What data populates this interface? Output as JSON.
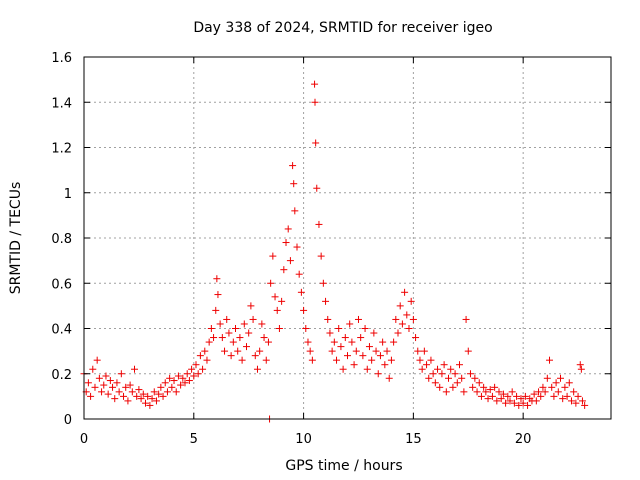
{
  "chart_data": {
    "type": "scatter",
    "title": "Day 338 of 2024, SRMTID for receiver igeo",
    "xlabel": "GPS time / hours",
    "ylabel": "SRMTID / TECUs",
    "xlim": [
      0,
      24
    ],
    "ylim": [
      0,
      1.6
    ],
    "x_ticks": [
      "0",
      "5",
      "10",
      "15",
      "20"
    ],
    "y_ticks": [
      "0",
      "0.2",
      "0.4",
      "0.6",
      "0.8",
      "1",
      "1.2",
      "1.4",
      "1.6"
    ],
    "grid": true,
    "marker": "+",
    "color": "#ee0000",
    "series": [
      {
        "name": "igeo",
        "points": [
          [
            0.0,
            0.2
          ],
          [
            0.1,
            0.12
          ],
          [
            0.2,
            0.16
          ],
          [
            0.3,
            0.1
          ],
          [
            0.4,
            0.22
          ],
          [
            0.5,
            0.14
          ],
          [
            0.6,
            0.26
          ],
          [
            0.7,
            0.18
          ],
          [
            0.8,
            0.12
          ],
          [
            0.9,
            0.15
          ],
          [
            1.0,
            0.19
          ],
          [
            1.1,
            0.11
          ],
          [
            1.2,
            0.17
          ],
          [
            1.3,
            0.14
          ],
          [
            1.4,
            0.09
          ],
          [
            1.5,
            0.16
          ],
          [
            1.6,
            0.12
          ],
          [
            1.7,
            0.2
          ],
          [
            1.8,
            0.1
          ],
          [
            1.9,
            0.14
          ],
          [
            2.0,
            0.08
          ],
          [
            2.1,
            0.15
          ],
          [
            2.2,
            0.12
          ],
          [
            2.3,
            0.22
          ],
          [
            2.4,
            0.1
          ],
          [
            2.5,
            0.13
          ],
          [
            2.6,
            0.09
          ],
          [
            2.7,
            0.11
          ],
          [
            2.8,
            0.07
          ],
          [
            2.9,
            0.1
          ],
          [
            3.0,
            0.06
          ],
          [
            3.1,
            0.09
          ],
          [
            3.2,
            0.12
          ],
          [
            3.3,
            0.08
          ],
          [
            3.4,
            0.11
          ],
          [
            3.5,
            0.14
          ],
          [
            3.6,
            0.1
          ],
          [
            3.7,
            0.16
          ],
          [
            3.8,
            0.12
          ],
          [
            3.9,
            0.18
          ],
          [
            4.0,
            0.14
          ],
          [
            4.1,
            0.17
          ],
          [
            4.2,
            0.12
          ],
          [
            4.3,
            0.19
          ],
          [
            4.4,
            0.15
          ],
          [
            4.5,
            0.18
          ],
          [
            4.6,
            0.16
          ],
          [
            4.7,
            0.2
          ],
          [
            4.8,
            0.17
          ],
          [
            4.9,
            0.22
          ],
          [
            5.0,
            0.19
          ],
          [
            5.1,
            0.24
          ],
          [
            5.2,
            0.2
          ],
          [
            5.3,
            0.28
          ],
          [
            5.4,
            0.22
          ],
          [
            5.5,
            0.3
          ],
          [
            5.6,
            0.26
          ],
          [
            5.7,
            0.34
          ],
          [
            5.8,
            0.4
          ],
          [
            5.9,
            0.36
          ],
          [
            6.0,
            0.48
          ],
          [
            6.05,
            0.62
          ],
          [
            6.1,
            0.55
          ],
          [
            6.2,
            0.42
          ],
          [
            6.3,
            0.36
          ],
          [
            6.4,
            0.3
          ],
          [
            6.5,
            0.44
          ],
          [
            6.6,
            0.38
          ],
          [
            6.7,
            0.28
          ],
          [
            6.8,
            0.34
          ],
          [
            6.9,
            0.4
          ],
          [
            7.0,
            0.3
          ],
          [
            7.1,
            0.36
          ],
          [
            7.2,
            0.26
          ],
          [
            7.3,
            0.42
          ],
          [
            7.4,
            0.32
          ],
          [
            7.5,
            0.38
          ],
          [
            7.6,
            0.5
          ],
          [
            7.7,
            0.44
          ],
          [
            7.8,
            0.28
          ],
          [
            7.9,
            0.22
          ],
          [
            8.0,
            0.3
          ],
          [
            8.1,
            0.42
          ],
          [
            8.2,
            0.36
          ],
          [
            8.3,
            0.26
          ],
          [
            8.4,
            0.34
          ],
          [
            8.5,
            0.6
          ],
          [
            8.6,
            0.72
          ],
          [
            8.7,
            0.54
          ],
          [
            8.8,
            0.48
          ],
          [
            8.9,
            0.4
          ],
          [
            9.0,
            0.52
          ],
          [
            9.1,
            0.66
          ],
          [
            9.2,
            0.78
          ],
          [
            9.3,
            0.84
          ],
          [
            9.4,
            0.7
          ],
          [
            9.5,
            1.12
          ],
          [
            9.55,
            1.04
          ],
          [
            9.6,
            0.92
          ],
          [
            9.7,
            0.76
          ],
          [
            9.8,
            0.64
          ],
          [
            9.9,
            0.56
          ],
          [
            10.0,
            0.48
          ],
          [
            10.1,
            0.4
          ],
          [
            10.2,
            0.34
          ],
          [
            10.3,
            0.3
          ],
          [
            10.4,
            0.26
          ],
          [
            10.5,
            1.48
          ],
          [
            10.52,
            1.4
          ],
          [
            10.55,
            1.22
          ],
          [
            10.6,
            1.02
          ],
          [
            10.7,
            0.86
          ],
          [
            10.8,
            0.72
          ],
          [
            10.9,
            0.6
          ],
          [
            11.0,
            0.52
          ],
          [
            11.1,
            0.44
          ],
          [
            11.2,
            0.38
          ],
          [
            11.3,
            0.3
          ],
          [
            11.4,
            0.34
          ],
          [
            11.5,
            0.26
          ],
          [
            11.6,
            0.4
          ],
          [
            11.7,
            0.32
          ],
          [
            11.8,
            0.22
          ],
          [
            11.9,
            0.36
          ],
          [
            12.0,
            0.28
          ],
          [
            12.1,
            0.42
          ],
          [
            12.2,
            0.34
          ],
          [
            12.3,
            0.24
          ],
          [
            12.4,
            0.3
          ],
          [
            12.5,
            0.44
          ],
          [
            12.6,
            0.36
          ],
          [
            12.7,
            0.28
          ],
          [
            12.8,
            0.4
          ],
          [
            12.9,
            0.22
          ],
          [
            13.0,
            0.32
          ],
          [
            13.1,
            0.26
          ],
          [
            13.2,
            0.38
          ],
          [
            13.3,
            0.3
          ],
          [
            13.4,
            0.2
          ],
          [
            13.5,
            0.28
          ],
          [
            13.6,
            0.34
          ],
          [
            13.7,
            0.24
          ],
          [
            13.8,
            0.3
          ],
          [
            13.9,
            0.18
          ],
          [
            14.0,
            0.26
          ],
          [
            14.1,
            0.34
          ],
          [
            14.2,
            0.44
          ],
          [
            14.3,
            0.38
          ],
          [
            14.4,
            0.5
          ],
          [
            14.5,
            0.42
          ],
          [
            14.6,
            0.56
          ],
          [
            14.7,
            0.46
          ],
          [
            14.8,
            0.4
          ],
          [
            14.9,
            0.52
          ],
          [
            15.0,
            0.44
          ],
          [
            15.1,
            0.36
          ],
          [
            15.2,
            0.3
          ],
          [
            15.3,
            0.26
          ],
          [
            15.4,
            0.22
          ],
          [
            15.5,
            0.3
          ],
          [
            15.6,
            0.24
          ],
          [
            15.7,
            0.18
          ],
          [
            15.8,
            0.26
          ],
          [
            15.9,
            0.2
          ],
          [
            16.0,
            0.16
          ],
          [
            16.1,
            0.22
          ],
          [
            16.2,
            0.14
          ],
          [
            16.3,
            0.2
          ],
          [
            16.4,
            0.24
          ],
          [
            16.5,
            0.12
          ],
          [
            16.6,
            0.18
          ],
          [
            16.7,
            0.22
          ],
          [
            16.8,
            0.14
          ],
          [
            16.9,
            0.2
          ],
          [
            17.0,
            0.16
          ],
          [
            17.1,
            0.24
          ],
          [
            17.2,
            0.18
          ],
          [
            17.3,
            0.12
          ],
          [
            17.4,
            0.44
          ],
          [
            17.5,
            0.3
          ],
          [
            17.6,
            0.2
          ],
          [
            17.7,
            0.14
          ],
          [
            17.8,
            0.18
          ],
          [
            17.9,
            0.12
          ],
          [
            18.0,
            0.16
          ],
          [
            18.1,
            0.1
          ],
          [
            18.2,
            0.14
          ],
          [
            18.3,
            0.12
          ],
          [
            18.4,
            0.09
          ],
          [
            18.5,
            0.13
          ],
          [
            18.6,
            0.1
          ],
          [
            18.7,
            0.14
          ],
          [
            18.8,
            0.08
          ],
          [
            18.9,
            0.12
          ],
          [
            19.0,
            0.09
          ],
          [
            19.1,
            0.11
          ],
          [
            19.2,
            0.07
          ],
          [
            19.3,
            0.1
          ],
          [
            19.4,
            0.08
          ],
          [
            19.5,
            0.12
          ],
          [
            19.6,
            0.07
          ],
          [
            19.7,
            0.1
          ],
          [
            19.8,
            0.06
          ],
          [
            19.9,
            0.09
          ],
          [
            20.0,
            0.07
          ],
          [
            20.1,
            0.1
          ],
          [
            20.2,
            0.06
          ],
          [
            20.3,
            0.09
          ],
          [
            20.4,
            0.08
          ],
          [
            20.5,
            0.11
          ],
          [
            20.6,
            0.08
          ],
          [
            20.7,
            0.12
          ],
          [
            20.8,
            0.1
          ],
          [
            20.9,
            0.14
          ],
          [
            21.0,
            0.12
          ],
          [
            21.1,
            0.18
          ],
          [
            21.2,
            0.26
          ],
          [
            21.3,
            0.14
          ],
          [
            21.4,
            0.1
          ],
          [
            21.5,
            0.16
          ],
          [
            21.6,
            0.12
          ],
          [
            21.7,
            0.18
          ],
          [
            21.8,
            0.09
          ],
          [
            21.9,
            0.14
          ],
          [
            22.0,
            0.1
          ],
          [
            22.1,
            0.16
          ],
          [
            22.2,
            0.08
          ],
          [
            22.3,
            0.12
          ],
          [
            22.4,
            0.07
          ],
          [
            22.5,
            0.1
          ],
          [
            22.6,
            0.24
          ],
          [
            22.65,
            0.22
          ],
          [
            22.7,
            0.08
          ],
          [
            22.8,
            0.06
          ],
          [
            8.45,
            0.0
          ]
        ]
      }
    ]
  }
}
